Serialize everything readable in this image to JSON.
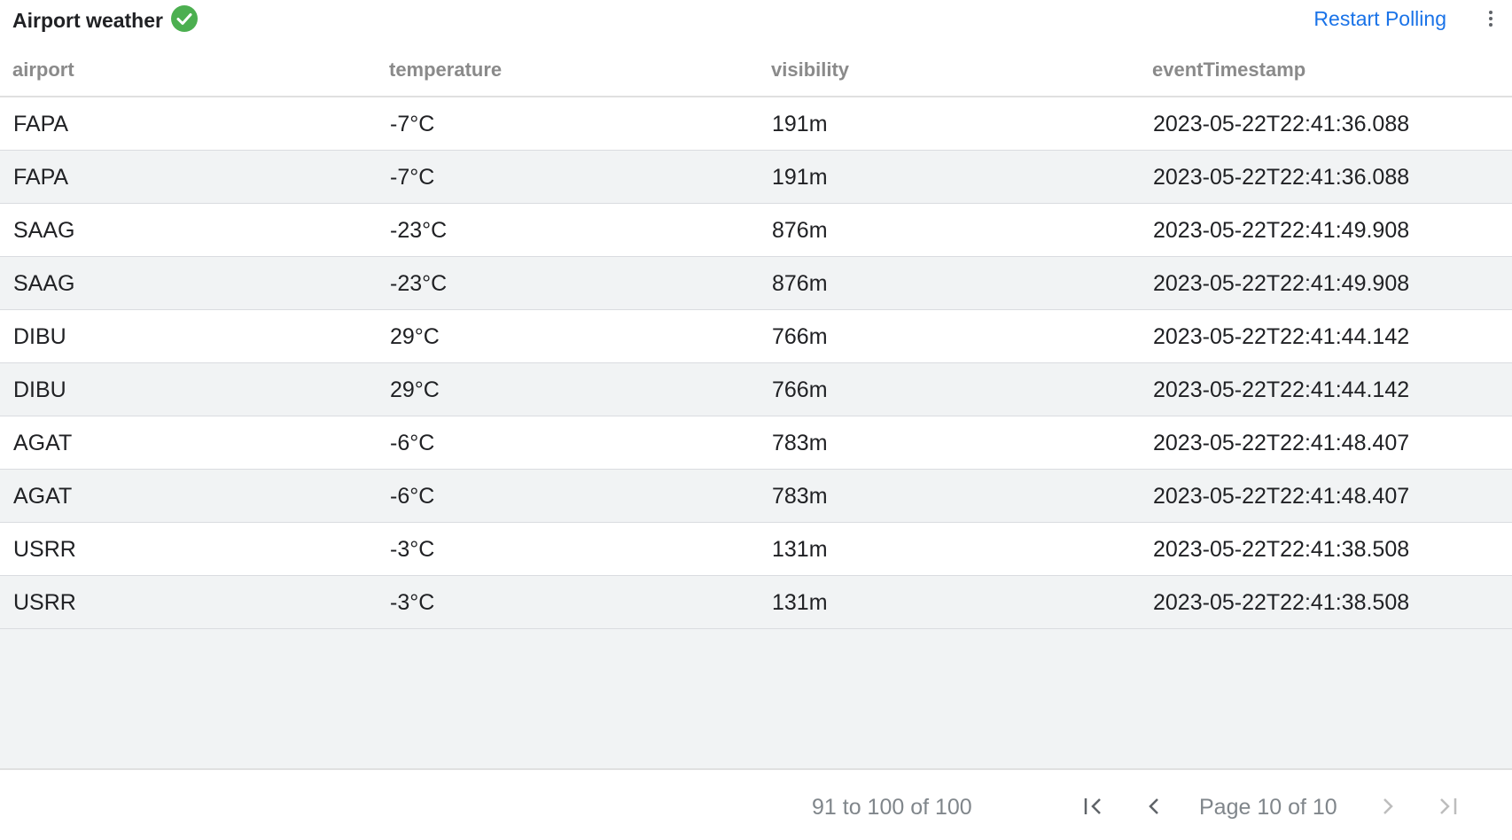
{
  "header": {
    "title": "Airport weather",
    "status_icon": "check-circle-icon",
    "status_color": "#4caf50",
    "restart_label": "Restart Polling",
    "menu_icon": "more-vert-icon"
  },
  "table": {
    "columns": [
      "airport",
      "temperature",
      "visibility",
      "eventTimestamp"
    ],
    "rows": [
      [
        "FAPA",
        "-7°C",
        "191m",
        "2023-05-22T22:41:36.088"
      ],
      [
        "FAPA",
        "-7°C",
        "191m",
        "2023-05-22T22:41:36.088"
      ],
      [
        "SAAG",
        "-23°C",
        "876m",
        "2023-05-22T22:41:49.908"
      ],
      [
        "SAAG",
        "-23°C",
        "876m",
        "2023-05-22T22:41:49.908"
      ],
      [
        "DIBU",
        "29°C",
        "766m",
        "2023-05-22T22:41:44.142"
      ],
      [
        "DIBU",
        "29°C",
        "766m",
        "2023-05-22T22:41:44.142"
      ],
      [
        "AGAT",
        "-6°C",
        "783m",
        "2023-05-22T22:41:48.407"
      ],
      [
        "AGAT",
        "-6°C",
        "783m",
        "2023-05-22T22:41:48.407"
      ],
      [
        "USRR",
        "-3°C",
        "131m",
        "2023-05-22T22:41:38.508"
      ],
      [
        "USRR",
        "-3°C",
        "131m",
        "2023-05-22T22:41:38.508"
      ]
    ]
  },
  "pagination": {
    "range": "91 to 100 of 100",
    "page_info": "Page 10 of 10"
  }
}
